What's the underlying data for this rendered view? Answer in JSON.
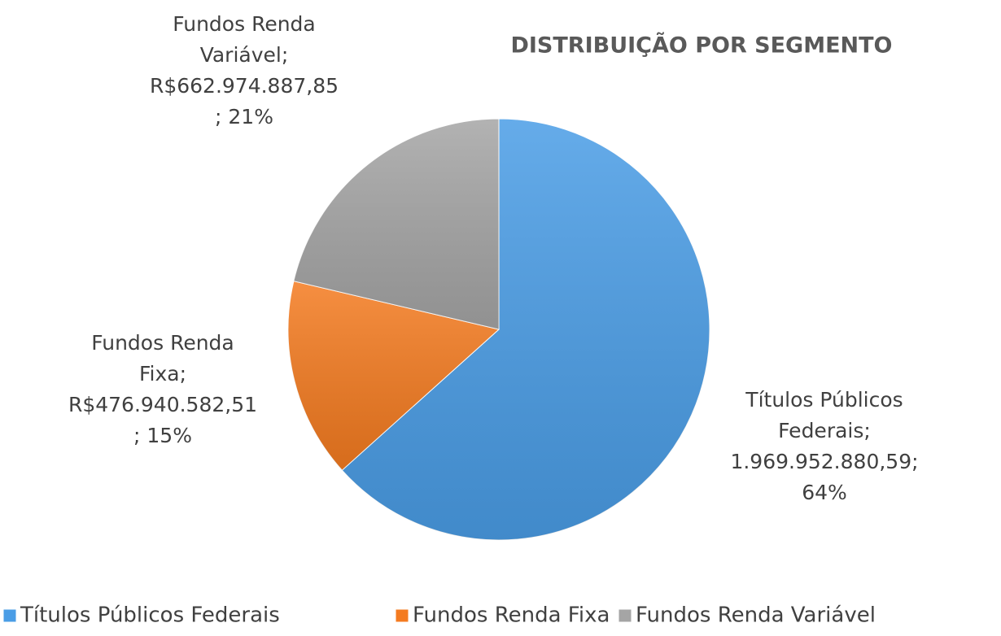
{
  "chart_data": {
    "type": "pie",
    "title": "DISTRIBUIÇÃO POR SEGMENTO",
    "categories": [
      "Títulos Públicos Federais",
      "Fundos Renda Fixa",
      "Fundos Renda Variável"
    ],
    "values": [
      1969952880.59,
      476940582.51,
      662974887.85
    ],
    "colors": [
      "#4a9de6",
      "#f47b20",
      "#a5a5a5"
    ],
    "data_labels": [
      [
        "Títulos Públicos",
        "Federais;",
        "1.969.952.880,59;",
        "64%"
      ],
      [
        "Fundos Renda",
        "Fixa;",
        "R$476.940.582,51",
        "; 15%"
      ],
      [
        "Fundos Renda",
        "Variável;",
        "R$662.974.887,85",
        "; 21%"
      ]
    ],
    "legend": "bottom"
  }
}
